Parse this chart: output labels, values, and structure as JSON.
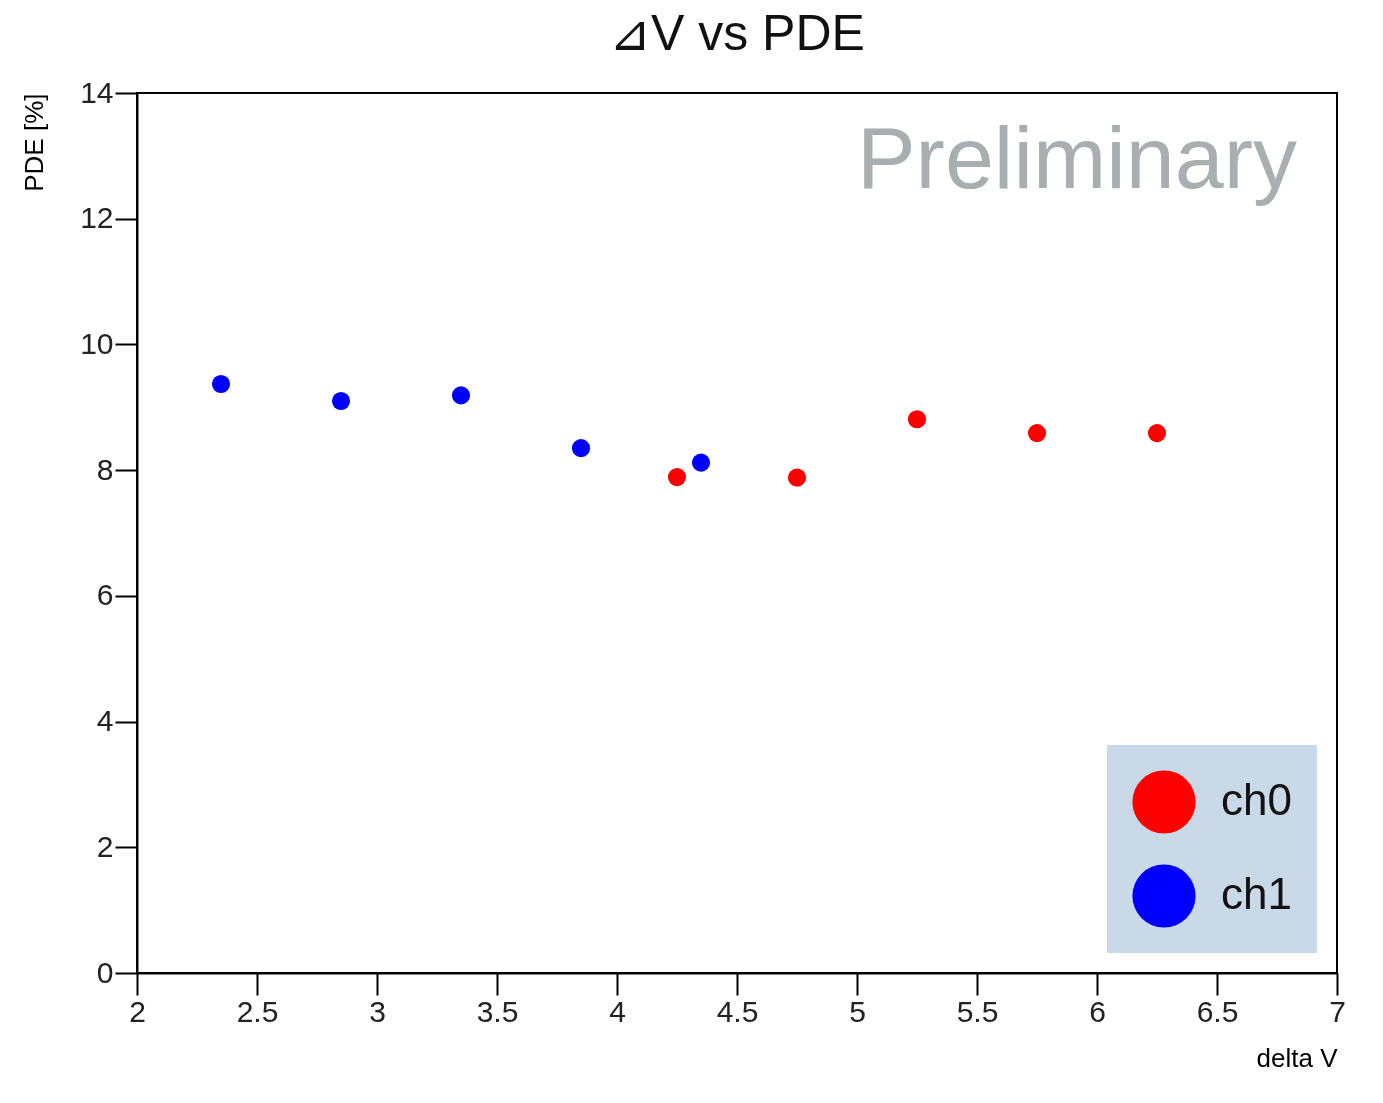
{
  "chart_data": {
    "type": "scatter",
    "title": "⊿V vs PDE",
    "xlabel": "delta V",
    "ylabel": "PDE [%]",
    "annotations": [
      "Preliminary"
    ],
    "xlim": [
      2,
      7
    ],
    "xticks": [
      2,
      2.5,
      3,
      3.5,
      4,
      4.5,
      5,
      5.5,
      6,
      6.5,
      7
    ],
    "ylim": [
      0,
      14
    ],
    "yticks": [
      0,
      2,
      4,
      6,
      8,
      10,
      12,
      14
    ],
    "grid": false,
    "legend": "bottom right",
    "marker": "circle",
    "series": [
      {
        "name": "ch0",
        "color": "#ff0000",
        "x": [
          4.25,
          4.75,
          5.25,
          5.75,
          6.25
        ],
        "values": [
          7.89,
          7.88,
          8.81,
          8.59,
          8.59
        ]
      },
      {
        "name": "ch1",
        "color": "#0000ff",
        "x": [
          2.35,
          2.85,
          3.35,
          3.85,
          4.35
        ],
        "values": [
          9.37,
          9.1,
          9.19,
          8.35,
          8.12
        ]
      }
    ]
  }
}
